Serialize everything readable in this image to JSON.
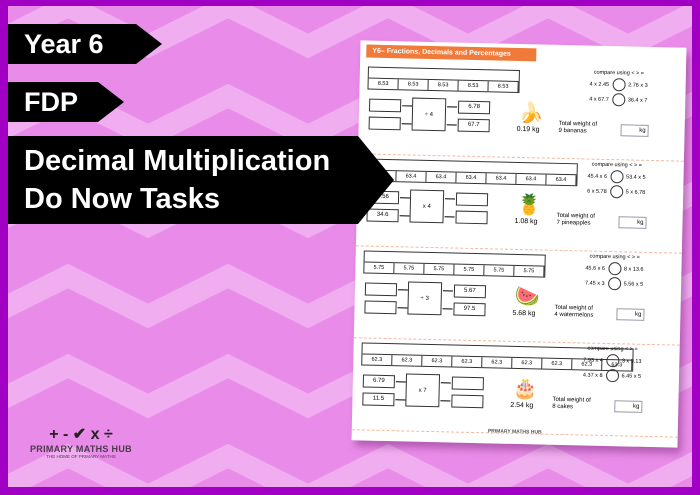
{
  "colors": {
    "frame": "#a100c4",
    "background": "#e98ce9",
    "accent": "#f07a3a"
  },
  "banners": {
    "year": "Year 6",
    "topic": "FDP",
    "title_line1": "Decimal Multiplication",
    "title_line2": "Do Now Tasks"
  },
  "worksheet": {
    "header": "Y6– Fractions, Decimals and Percentages",
    "compare_label": "compare using < > =",
    "sections": [
      {
        "bar": [
          "8.53",
          "8.53",
          "8.53",
          "8.53",
          "8.53"
        ],
        "inputs": [
          "",
          ""
        ],
        "operator": "÷ 4",
        "outputs": [
          "6.78",
          "67.7"
        ],
        "compare": [
          [
            "4 x 2.45",
            "2.76 x 3"
          ],
          [
            "4 x 67.7",
            "36.4 x 7"
          ]
        ],
        "item_icon": "banana",
        "item_weight": "0.19 kg",
        "total_line1": "Total weight of",
        "total_line2": "9 bananas",
        "unit": "kg"
      },
      {
        "bar": [
          "63.4",
          "63.4",
          "63.4",
          "63.4",
          "63.4",
          "63.4",
          "63.4"
        ],
        "inputs": [
          "4.56",
          "34.6"
        ],
        "operator": "x 4",
        "outputs": [
          "",
          ""
        ],
        "compare": [
          [
            "45.4 x 6",
            "53.4 x 5"
          ],
          [
            "6 x 5.78",
            "5 x 6.78"
          ]
        ],
        "item_icon": "pineapple",
        "item_weight": "1.08 kg",
        "total_line1": "Total weight of",
        "total_line2": "7 pineapples",
        "unit": "kg"
      },
      {
        "bar": [
          "5.75",
          "5.75",
          "5.75",
          "5.75",
          "5.75",
          "5.75"
        ],
        "inputs": [
          "",
          ""
        ],
        "operator": "÷ 3",
        "outputs": [
          "5.67",
          "97.5"
        ],
        "compare": [
          [
            "45.6 x 6",
            "8 x 13.6"
          ],
          [
            "7.45 x 3",
            "5.56 x 5"
          ]
        ],
        "item_icon": "watermelon",
        "item_weight": "5.68 kg",
        "total_line1": "Total weight of",
        "total_line2": "4 watermelons",
        "unit": "kg"
      },
      {
        "bar": [
          "62.3",
          "62.3",
          "62.3",
          "62.3",
          "62.3",
          "62.3",
          "62.3",
          "62.3",
          "62.3"
        ],
        "inputs": [
          "6.79",
          "11.5"
        ],
        "operator": "x 7",
        "outputs": [
          "",
          ""
        ],
        "compare": [
          [
            "7.93 x 4",
            "3 x 9.13"
          ],
          [
            "4.37 x 8",
            "6.45 x 5"
          ]
        ],
        "item_icon": "cake",
        "item_weight": "2.54 kg",
        "total_line1": "Total weight of",
        "total_line2": "8 cakes",
        "unit": "kg"
      }
    ],
    "footer_logo": "PRIMARY MATHS HUB"
  },
  "logo": {
    "symbols": "+ - ✔ x ÷",
    "name": "PRIMARY MATHS HUB",
    "tagline": "THE HOME OF PRIMARY MATHS"
  }
}
